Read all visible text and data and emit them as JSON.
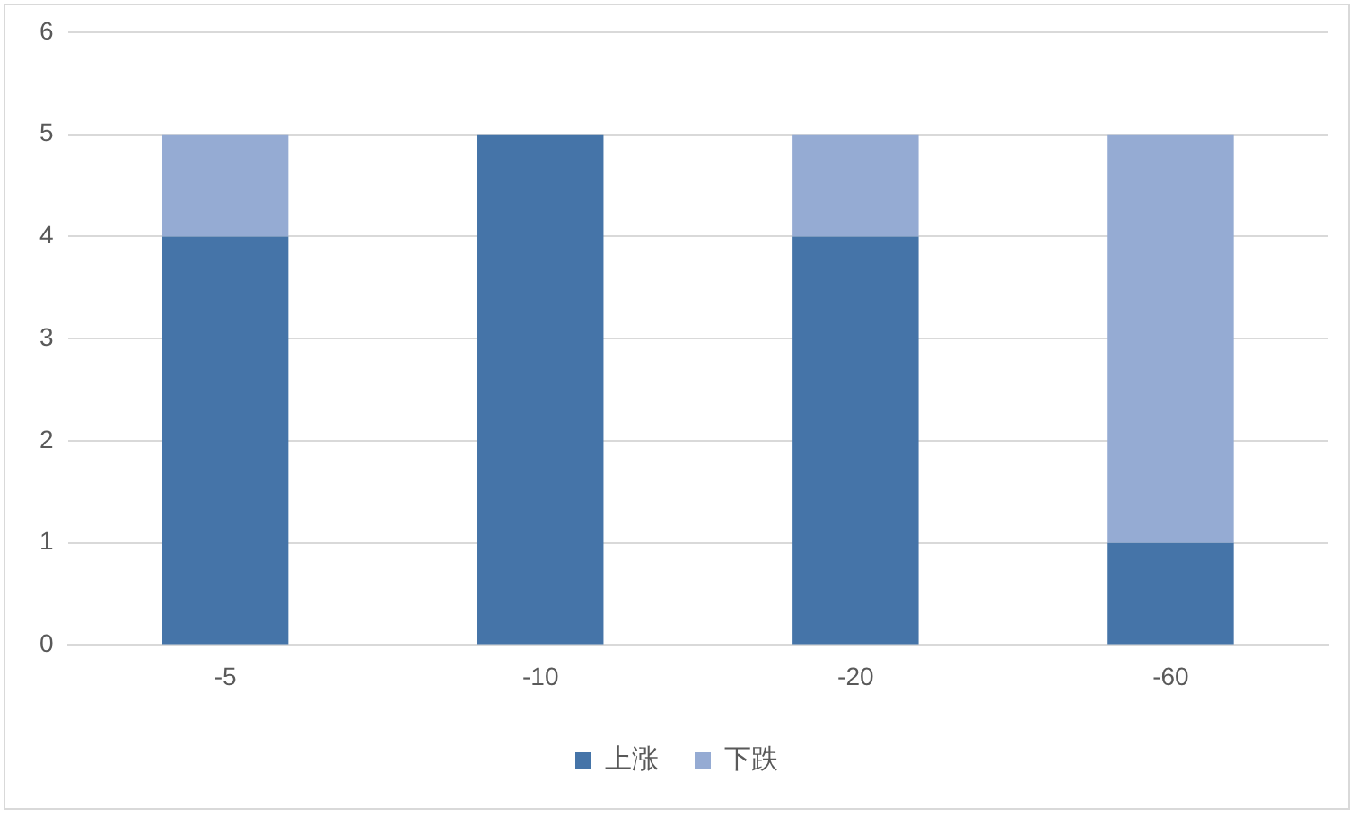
{
  "chart_data": {
    "type": "bar",
    "stacked": true,
    "categories": [
      "-5",
      "-10",
      "-20",
      "-60"
    ],
    "series": [
      {
        "name": "上涨",
        "color": "#4574a8",
        "values": [
          4,
          5,
          4,
          1
        ]
      },
      {
        "name": "下跌",
        "color": "#95abd3",
        "values": [
          1,
          0,
          1,
          4
        ]
      }
    ],
    "ylim": [
      0,
      6
    ],
    "yticks": [
      0,
      1,
      2,
      3,
      4,
      5,
      6
    ],
    "grid": "y",
    "legend": "bottom"
  }
}
